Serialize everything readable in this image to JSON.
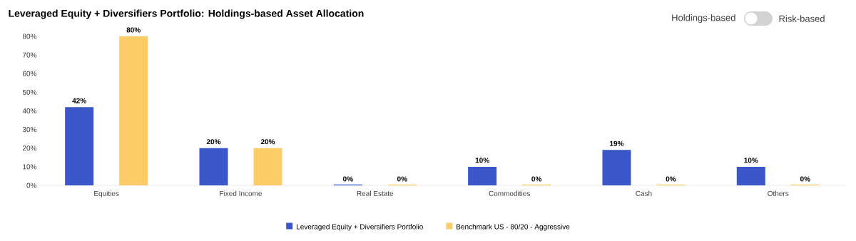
{
  "chart_data": {
    "type": "bar",
    "title": "Leveraged Equity + Diversifiers Portfolio: Holdings-based Asset Allocation",
    "categories": [
      "Equities",
      "Fixed Income",
      "Real Estate",
      "Commodities",
      "Cash",
      "Others"
    ],
    "series": [
      {
        "name": "Leveraged Equity + Diversifiers Portfolio",
        "color": "#3a56c8",
        "values": [
          42,
          20,
          0,
          10,
          19,
          10
        ],
        "value_labels": [
          "42%",
          "20%",
          "0%",
          "10%",
          "19%",
          "10%"
        ]
      },
      {
        "name": "Benchmark US - 80/20 - Aggressive",
        "color": "#fccd66",
        "values": [
          80,
          20,
          0,
          0,
          0,
          0
        ],
        "value_labels": [
          "80%",
          "20%",
          "0%",
          "0%",
          "0%",
          "0%"
        ]
      }
    ],
    "ylim": [
      0,
      80
    ],
    "yticks": [
      {
        "value": 0,
        "label": "0%"
      },
      {
        "value": 10,
        "label": "10%"
      },
      {
        "value": 20,
        "label": "20%"
      },
      {
        "value": 30,
        "label": "30%"
      },
      {
        "value": 40,
        "label": "40%"
      },
      {
        "value": 50,
        "label": "50%"
      },
      {
        "value": 60,
        "label": "60%"
      },
      {
        "value": 70,
        "label": "70%"
      },
      {
        "value": 80,
        "label": "80%"
      }
    ],
    "legend": "bottom",
    "annotations": [
      "Holdings-based",
      "Risk-based"
    ]
  }
}
